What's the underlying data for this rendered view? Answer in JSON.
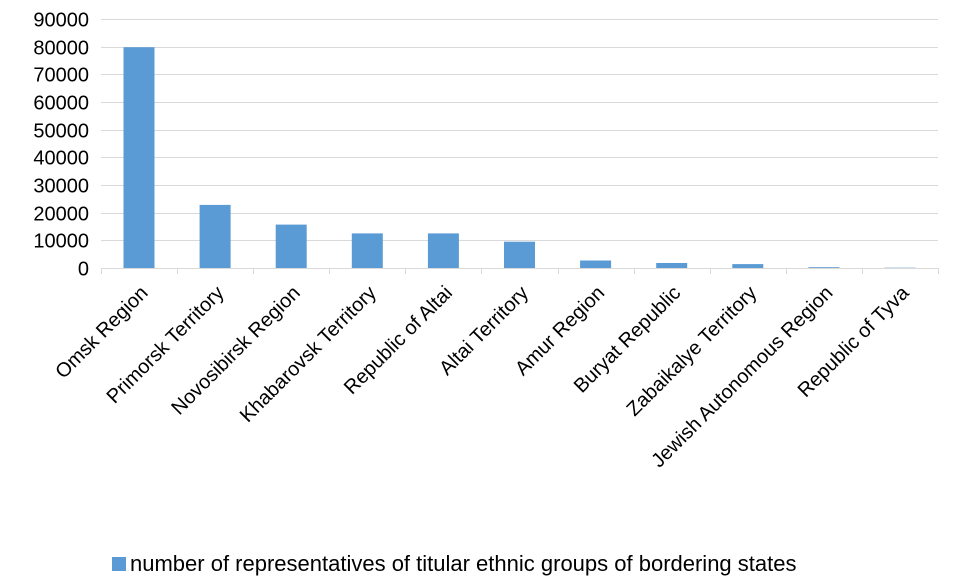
{
  "chart_data": {
    "type": "bar",
    "categories": [
      "Omsk Region",
      "Primorsk Territory",
      "Novosibirsk Region",
      "Khabarovsk Territory",
      "Republic of Altai",
      "Altai Territory",
      "Amur Region",
      "Buryat Republic",
      "Zabaikalye Territory",
      "Jewish Autonomous Region",
      "Republic of Tyva"
    ],
    "series": [
      {
        "name": "number of representatives of titular ethnic groups of bordering states",
        "color": "#5B9BD5",
        "values": [
          79800,
          22800,
          15700,
          12500,
          12500,
          9500,
          2700,
          1800,
          1400,
          300,
          100
        ]
      }
    ],
    "ylim": [
      0,
      90000
    ],
    "yticks": [
      0,
      10000,
      20000,
      30000,
      40000,
      50000,
      60000,
      70000,
      80000,
      90000
    ],
    "grid": true,
    "legend_position": "bottom"
  }
}
